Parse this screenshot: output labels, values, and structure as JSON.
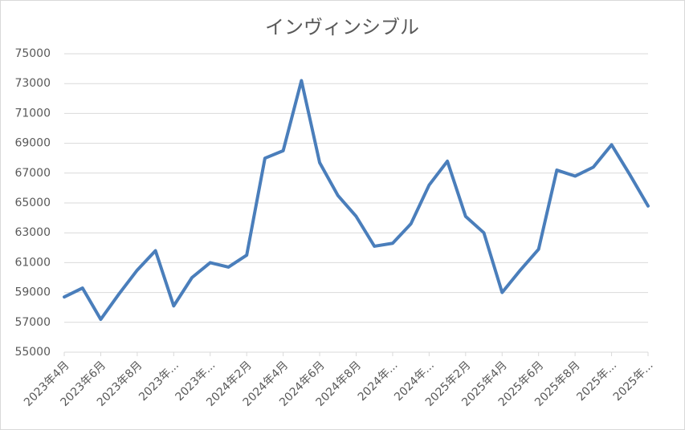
{
  "chart_data": {
    "type": "line",
    "title": "インヴィンシブル",
    "categories": [
      "2023年4月",
      null,
      "2023年6月",
      null,
      "2023年8月",
      null,
      "2023年...",
      null,
      "2023年...",
      null,
      "2024年2月",
      null,
      "2024年4月",
      null,
      "2024年6月",
      null,
      "2024年8月",
      null,
      "2024年...",
      null,
      "2024年...",
      null,
      "2025年2月",
      null,
      "2025年4月",
      null,
      "2025年6月",
      null,
      "2025年8月",
      null,
      "2025年...",
      null,
      "2025年..."
    ],
    "values": [
      58700,
      59300,
      57200,
      58900,
      60500,
      61800,
      58100,
      60000,
      61000,
      60700,
      61500,
      68000,
      68500,
      73200,
      67700,
      65500,
      64100,
      62100,
      62300,
      63600,
      66200,
      67800,
      64100,
      63000,
      59000,
      60500,
      61900,
      67200,
      66800,
      67400,
      68900,
      66900,
      64800
    ],
    "color": "#4a7ebb",
    "ylim": [
      55000,
      75000
    ],
    "yticks": [
      55000,
      57000,
      59000,
      61000,
      63000,
      65000,
      67000,
      69000,
      71000,
      73000,
      75000
    ],
    "grid": true
  }
}
